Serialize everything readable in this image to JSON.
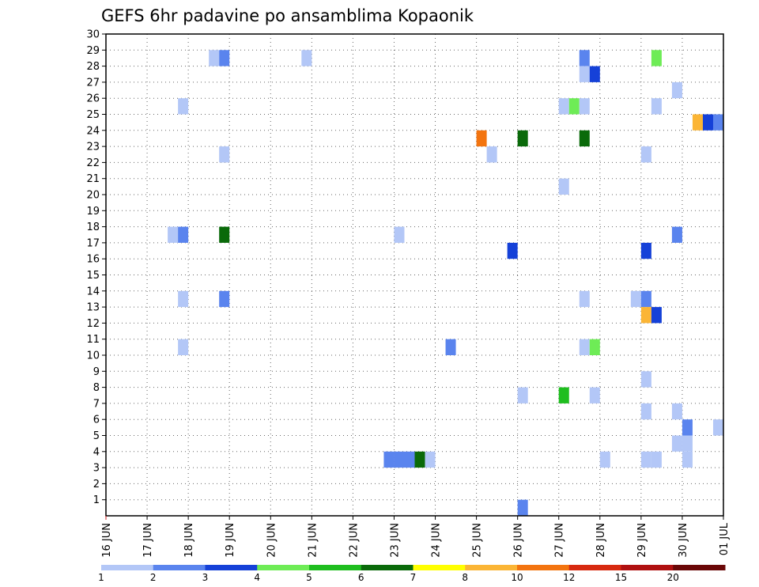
{
  "chart_data": {
    "type": "heatmap",
    "title": "GEFS 6hr padavine po ansamblima Kopaonik",
    "x_tick_labels": [
      "16 JUN",
      "17 JUN",
      "18 JUN",
      "19 JUN",
      "20 JUN",
      "21 JUN",
      "22 JUN",
      "23 JUN",
      "24 JUN",
      "25 JUN",
      "26 JUN",
      "27 JUN",
      "28 JUN",
      "29 JUN",
      "30 JUN",
      "01 JUL"
    ],
    "y_tick_labels": [
      "1",
      "2",
      "3",
      "4",
      "5",
      "6",
      "7",
      "8",
      "9",
      "10",
      "11",
      "12",
      "13",
      "14",
      "15",
      "16",
      "17",
      "18",
      "19",
      "20",
      "21",
      "22",
      "23",
      "24",
      "25",
      "26",
      "27",
      "28",
      "29",
      "30"
    ],
    "ylim": [
      0,
      30
    ],
    "x_range_steps": [
      0,
      60
    ],
    "grid": true,
    "legend": {
      "position": "bottom",
      "colors": [
        "#b3c7f7",
        "#5a84ee",
        "#1541d8",
        "#6eec56",
        "#1fbe1f",
        "#0a6a0a",
        "#ffff00",
        "#fbb535",
        "#f3740f",
        "#d7290f",
        "#b01010",
        "#6a0707"
      ],
      "labels": [
        "1",
        "2",
        "3",
        "4",
        "5",
        "6",
        "7",
        "8",
        "10",
        "12",
        "15",
        "20"
      ]
    },
    "cells": [
      {
        "x": 10.5,
        "y": 28,
        "c": 0
      },
      {
        "x": 11.5,
        "y": 28,
        "c": 1
      },
      {
        "x": 19.5,
        "y": 28,
        "c": 0
      },
      {
        "x": 46.5,
        "y": 28,
        "c": 1
      },
      {
        "x": 53.5,
        "y": 28,
        "c": 3
      },
      {
        "x": 46.5,
        "y": 27,
        "c": 0
      },
      {
        "x": 47.5,
        "y": 27,
        "c": 2
      },
      {
        "x": 55.5,
        "y": 26,
        "c": 0
      },
      {
        "x": 7.5,
        "y": 25,
        "c": 0
      },
      {
        "x": 44.5,
        "y": 25,
        "c": 0
      },
      {
        "x": 45.5,
        "y": 25,
        "c": 3
      },
      {
        "x": 46.5,
        "y": 25,
        "c": 0
      },
      {
        "x": 53.5,
        "y": 25,
        "c": 0
      },
      {
        "x": 57.5,
        "y": 24,
        "c": 7
      },
      {
        "x": 58.5,
        "y": 24,
        "c": 2
      },
      {
        "x": 59.5,
        "y": 24,
        "c": 1
      },
      {
        "x": 36.5,
        "y": 23,
        "c": 8
      },
      {
        "x": 40.5,
        "y": 23,
        "c": 5
      },
      {
        "x": 46.5,
        "y": 23,
        "c": 5
      },
      {
        "x": 11.5,
        "y": 22,
        "c": 0
      },
      {
        "x": 37.5,
        "y": 22,
        "c": 0
      },
      {
        "x": 52.5,
        "y": 22,
        "c": 0
      },
      {
        "x": 44.5,
        "y": 20,
        "c": 0
      },
      {
        "x": 6.5,
        "y": 17,
        "c": 0
      },
      {
        "x": 7.5,
        "y": 17,
        "c": 1
      },
      {
        "x": 11.5,
        "y": 17,
        "c": 5
      },
      {
        "x": 28.5,
        "y": 17,
        "c": 0
      },
      {
        "x": 55.5,
        "y": 17,
        "c": 1
      },
      {
        "x": 39.5,
        "y": 16,
        "c": 2
      },
      {
        "x": 52.5,
        "y": 16,
        "c": 2
      },
      {
        "x": 7.5,
        "y": 13,
        "c": 0
      },
      {
        "x": 11.5,
        "y": 13,
        "c": 1
      },
      {
        "x": 46.5,
        "y": 13,
        "c": 0
      },
      {
        "x": 51.5,
        "y": 13,
        "c": 0
      },
      {
        "x": 52.5,
        "y": 13,
        "c": 1
      },
      {
        "x": 52.5,
        "y": 12,
        "c": 7
      },
      {
        "x": 53.5,
        "y": 12,
        "c": 2
      },
      {
        "x": 7.5,
        "y": 10,
        "c": 0
      },
      {
        "x": 33.5,
        "y": 10,
        "c": 1
      },
      {
        "x": 46.5,
        "y": 10,
        "c": 0
      },
      {
        "x": 47.5,
        "y": 10,
        "c": 3
      },
      {
        "x": 52.5,
        "y": 8,
        "c": 0
      },
      {
        "x": 40.5,
        "y": 7,
        "c": 0
      },
      {
        "x": 44.5,
        "y": 7,
        "c": 4
      },
      {
        "x": 47.5,
        "y": 7,
        "c": 0
      },
      {
        "x": 52.5,
        "y": 6,
        "c": 0
      },
      {
        "x": 55.5,
        "y": 6,
        "c": 0
      },
      {
        "x": 56.5,
        "y": 5,
        "c": 1
      },
      {
        "x": 59.5,
        "y": 5,
        "c": 0
      },
      {
        "x": 55.5,
        "y": 4,
        "c": 0
      },
      {
        "x": 56.5,
        "y": 4,
        "c": 0
      },
      {
        "x": 27.5,
        "y": 3,
        "c": 1
      },
      {
        "x": 28.5,
        "y": 3,
        "c": 1
      },
      {
        "x": 29.5,
        "y": 3,
        "c": 1
      },
      {
        "x": 30.5,
        "y": 3,
        "c": 5
      },
      {
        "x": 31.5,
        "y": 3,
        "c": 0
      },
      {
        "x": 48.5,
        "y": 3,
        "c": 0
      },
      {
        "x": 52.5,
        "y": 3,
        "c": 0
      },
      {
        "x": 53.5,
        "y": 3,
        "c": 0
      },
      {
        "x": 56.5,
        "y": 3,
        "c": 0
      },
      {
        "x": 40.5,
        "y": 0,
        "c": 1
      }
    ]
  }
}
